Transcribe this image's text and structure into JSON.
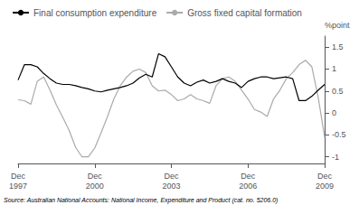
{
  "chart_data": {
    "type": "line",
    "ylabel": "%point",
    "annotations": [
      "Source: Australian National Accounts: National Income, Expenditure and Product (cat. no. 5206.0)"
    ],
    "categories": [
      "Dec\n1997",
      null,
      null,
      null,
      null,
      null,
      null,
      null,
      null,
      null,
      null,
      null,
      "Dec\n2000",
      null,
      null,
      null,
      null,
      null,
      null,
      null,
      null,
      null,
      null,
      null,
      "Dec\n2003",
      null,
      null,
      null,
      null,
      null,
      null,
      null,
      null,
      null,
      null,
      null,
      "Dec\n2006",
      null,
      null,
      null,
      null,
      null,
      null,
      null,
      null,
      null,
      null,
      null,
      "Dec\n2009"
    ],
    "series": [
      {
        "name": "Final consumption expenditure",
        "color": "#000000",
        "values": [
          0.75,
          1.1,
          1.1,
          1.05,
          0.9,
          0.78,
          0.68,
          0.65,
          0.65,
          0.62,
          0.58,
          0.55,
          0.5,
          0.48,
          0.52,
          0.55,
          0.58,
          0.62,
          0.68,
          0.8,
          0.88,
          0.82,
          1.35,
          1.28,
          1.05,
          0.82,
          0.68,
          0.62,
          0.7,
          0.75,
          0.68,
          0.72,
          0.78,
          0.72,
          0.68,
          0.58,
          0.72,
          0.78,
          0.82,
          0.82,
          0.78,
          0.8,
          0.82,
          0.78,
          0.28,
          0.28,
          0.38,
          0.52,
          0.65
        ]
      },
      {
        "name": "Gross fixed capital formation",
        "color": "#aaaaaa",
        "values": [
          0.3,
          0.28,
          0.2,
          0.72,
          0.82,
          0.52,
          0.18,
          -0.1,
          -0.4,
          -0.78,
          -1.0,
          -1.0,
          -0.8,
          -0.45,
          -0.08,
          0.32,
          0.62,
          0.82,
          0.95,
          1.0,
          0.92,
          0.62,
          0.5,
          0.52,
          0.42,
          0.28,
          0.32,
          0.42,
          0.32,
          0.28,
          0.22,
          0.62,
          0.78,
          0.82,
          0.72,
          0.52,
          0.32,
          0.08,
          0.02,
          -0.08,
          0.32,
          0.52,
          0.78,
          0.92,
          1.1,
          1.2,
          1.05,
          0.35,
          -0.55
        ]
      }
    ],
    "ylim": [
      -1.15,
      1.75
    ],
    "yticks": [
      -1,
      -0.5,
      0,
      0.5,
      1,
      1.5
    ],
    "grid": false,
    "legend": "upper left"
  }
}
